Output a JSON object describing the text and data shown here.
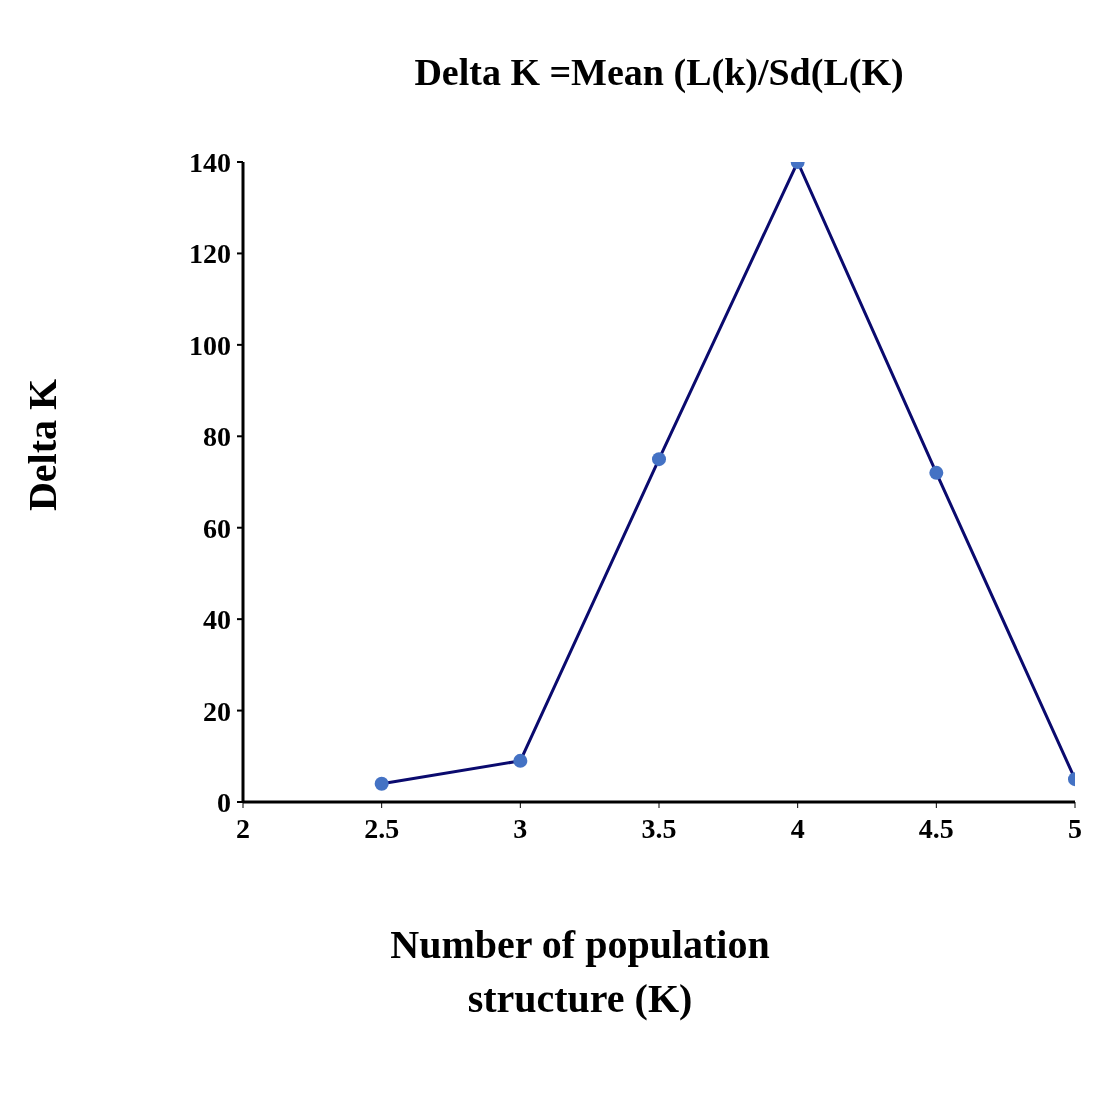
{
  "chart_data": {
    "type": "line",
    "title": "Delta K =Mean (L(k)/Sd(L(K)",
    "xlabel": "Number of population structure (K)",
    "ylabel": "Delta K",
    "x": [
      2.5,
      3,
      3.5,
      4,
      4.5,
      5
    ],
    "series": [
      {
        "color": "#0a0a6e",
        "colors": [
          "#4472c4",
          "#4472c4",
          "#4472c4",
          "#4472c4",
          "#4472c4",
          "#4472c4"
        ],
        "values": [
          4,
          9,
          75,
          140,
          72,
          5
        ]
      }
    ],
    "xlim": [
      2,
      5
    ],
    "xticks": [
      2,
      2.5,
      3,
      3.5,
      4,
      4.5,
      5
    ],
    "ylim": [
      0,
      140
    ],
    "yticks": [
      0,
      20,
      40,
      60,
      80,
      100,
      120,
      140
    ],
    "grid": false,
    "legend": false,
    "marker": "circle",
    "line_style": "solid"
  }
}
